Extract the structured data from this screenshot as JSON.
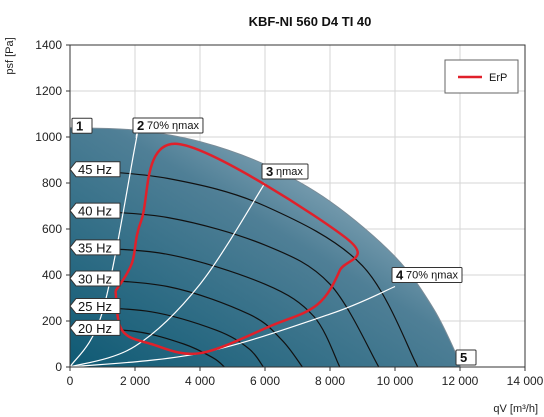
{
  "chart_data": {
    "type": "line",
    "title": "KBF-NI 560 D4 TI 40",
    "xlabel": "qV [m³/h]",
    "ylabel": "psf [Pa]",
    "xlim": [
      0,
      14000
    ],
    "ylim": [
      0,
      1400
    ],
    "xticks": [
      "0",
      "2 000",
      "4 000",
      "6 000",
      "8 000",
      "10 000",
      "12 000",
      "14 000"
    ],
    "yticks": [
      "0",
      "200",
      "400",
      "600",
      "800",
      "1000",
      "1200",
      "1400"
    ],
    "xtick_values": [
      0,
      2000,
      4000,
      6000,
      8000,
      10000,
      12000,
      14000
    ],
    "ytick_values": [
      0,
      200,
      400,
      600,
      800,
      1000,
      1200,
      1400
    ],
    "grid": true,
    "legend": {
      "position": "top-right",
      "entries": [
        {
          "name": "ErP",
          "color": "#e0202a"
        }
      ]
    },
    "colors": {
      "area_dark": "#0f5a74",
      "area_light": "#c8d6e0",
      "erp": "#e0202a",
      "curves": "#111111",
      "system_lines": "#ffffff"
    },
    "envelope": [
      [
        0,
        1040
      ],
      [
        2000,
        1030
      ],
      [
        4000,
        980
      ],
      [
        6000,
        880
      ],
      [
        8000,
        720
      ],
      [
        10000,
        480
      ],
      [
        11200,
        250
      ],
      [
        12000,
        20
      ],
      [
        12000,
        0
      ],
      [
        0,
        0
      ]
    ],
    "frequency_curves": [
      {
        "name": "45 Hz",
        "points": [
          [
            0,
            860
          ],
          [
            3000,
            820
          ],
          [
            6000,
            700
          ],
          [
            9000,
            440
          ],
          [
            10700,
            0
          ]
        ]
      },
      {
        "name": "40 Hz",
        "points": [
          [
            0,
            680
          ],
          [
            3000,
            650
          ],
          [
            6000,
            530
          ],
          [
            8000,
            360
          ],
          [
            9500,
            0
          ]
        ]
      },
      {
        "name": "35 Hz",
        "points": [
          [
            0,
            520
          ],
          [
            3000,
            490
          ],
          [
            6000,
            360
          ],
          [
            7500,
            220
          ],
          [
            8300,
            0
          ]
        ]
      },
      {
        "name": "30 Hz",
        "points": [
          [
            0,
            385
          ],
          [
            3000,
            350
          ],
          [
            5500,
            230
          ],
          [
            6500,
            120
          ],
          [
            7150,
            0
          ]
        ]
      },
      {
        "name": "25 Hz",
        "points": [
          [
            0,
            265
          ],
          [
            2500,
            240
          ],
          [
            4500,
            160
          ],
          [
            5500,
            80
          ],
          [
            5950,
            0
          ]
        ]
      },
      {
        "name": "20 Hz",
        "points": [
          [
            0,
            170
          ],
          [
            2000,
            155
          ],
          [
            3500,
            100
          ],
          [
            4400,
            40
          ],
          [
            4750,
            0
          ]
        ]
      }
    ],
    "system_lines": [
      {
        "name": "2",
        "label": "70% ηmax",
        "points": [
          [
            0,
            0
          ],
          [
            1000,
            240
          ],
          [
            2000,
            960
          ],
          [
            2030,
            1000
          ]
        ]
      },
      {
        "name": "3",
        "label": "ηmax",
        "points": [
          [
            0,
            0
          ],
          [
            2000,
            90
          ],
          [
            4000,
            360
          ],
          [
            6000,
            800
          ]
        ]
      },
      {
        "name": "4",
        "label": "70% ηmax",
        "points": [
          [
            0,
            0
          ],
          [
            4000,
            60
          ],
          [
            8000,
            230
          ],
          [
            10000,
            350
          ]
        ]
      }
    ],
    "erp_boundary": [
      [
        1400,
        330
      ],
      [
        1900,
        450
      ],
      [
        2200,
        640
      ],
      [
        3300,
        970
      ],
      [
        8500,
        560
      ],
      [
        8300,
        420
      ],
      [
        7600,
        270
      ],
      [
        6200,
        180
      ],
      [
        4000,
        60
      ],
      [
        2500,
        100
      ],
      [
        1600,
        160
      ],
      [
        1400,
        330
      ]
    ],
    "point_markers": [
      {
        "num": "1",
        "label": ""
      },
      {
        "num": "2",
        "label": "70% ηmax"
      },
      {
        "num": "3",
        "label": "ηmax"
      },
      {
        "num": "4",
        "label": "70% ηmax"
      },
      {
        "num": "5",
        "label": ""
      }
    ]
  }
}
